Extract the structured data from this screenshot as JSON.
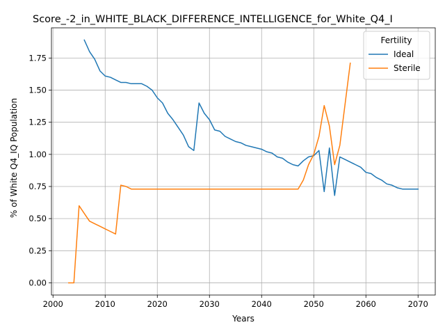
{
  "chart_data": {
    "type": "line",
    "title": "Score_-2_in_WHITE_BLACK_DIFFERENCE_INTELLIGENCE_for_White_Q4_I",
    "xlabel": "Years",
    "ylabel": "% of White Q4_IQ Population",
    "xlim": [
      1999.7,
      2073.3
    ],
    "ylim": [
      -0.095,
      1.985
    ],
    "xticks": [
      2000,
      2010,
      2020,
      2030,
      2040,
      2050,
      2060,
      2070
    ],
    "yticks": [
      0.0,
      0.25,
      0.5,
      0.75,
      1.0,
      1.25,
      1.5,
      1.75
    ],
    "ytick_labels": [
      "0.00",
      "0.25",
      "0.50",
      "0.75",
      "1.00",
      "1.25",
      "1.50",
      "1.75"
    ],
    "grid": true,
    "legend": {
      "title": "Fertility",
      "placement": "top-right"
    },
    "series": [
      {
        "name": "Ideal",
        "color": "#1f77b4",
        "x": [
          2006,
          2007,
          2008,
          2009,
          2010,
          2011,
          2012,
          2013,
          2014,
          2015,
          2016,
          2017,
          2018,
          2019,
          2020,
          2021,
          2022,
          2023,
          2024,
          2025,
          2026,
          2027,
          2028,
          2029,
          2030,
          2031,
          2032,
          2033,
          2034,
          2035,
          2036,
          2037,
          2038,
          2039,
          2040,
          2041,
          2042,
          2043,
          2044,
          2045,
          2046,
          2047,
          2048,
          2049,
          2050,
          2051,
          2052,
          2053,
          2054,
          2055,
          2056,
          2057,
          2058,
          2059,
          2060,
          2061,
          2062,
          2063,
          2064,
          2065,
          2066,
          2067,
          2068,
          2069,
          2070
        ],
        "y": [
          1.89,
          1.8,
          1.74,
          1.65,
          1.61,
          1.6,
          1.58,
          1.56,
          1.56,
          1.55,
          1.55,
          1.55,
          1.53,
          1.5,
          1.44,
          1.4,
          1.32,
          1.27,
          1.21,
          1.15,
          1.06,
          1.03,
          1.4,
          1.32,
          1.27,
          1.19,
          1.18,
          1.14,
          1.12,
          1.1,
          1.09,
          1.07,
          1.06,
          1.05,
          1.04,
          1.02,
          1.01,
          0.98,
          0.97,
          0.94,
          0.92,
          0.91,
          0.95,
          0.98,
          0.99,
          1.03,
          0.71,
          1.05,
          0.68,
          0.98,
          0.96,
          0.94,
          0.92,
          0.9,
          0.86,
          0.85,
          0.82,
          0.8,
          0.77,
          0.76,
          0.74,
          0.73,
          0.73,
          0.73,
          0.73
        ]
      },
      {
        "name": "Sterile",
        "color": "#ff7f0e",
        "x": [
          2003,
          2004,
          2005,
          2006,
          2007,
          2008,
          2009,
          2010,
          2011,
          2012,
          2013,
          2014,
          2015,
          2016,
          2017,
          2018,
          2019,
          2020,
          2021,
          2022,
          2023,
          2024,
          2025,
          2026,
          2027,
          2028,
          2029,
          2030,
          2031,
          2032,
          2033,
          2034,
          2035,
          2036,
          2037,
          2038,
          2039,
          2040,
          2041,
          2042,
          2043,
          2044,
          2045,
          2046,
          2047,
          2048,
          2049,
          2050,
          2051,
          2052,
          2053,
          2054,
          2055,
          2056,
          2057
        ],
        "y": [
          0.0,
          0.0,
          0.6,
          0.54,
          0.48,
          0.46,
          0.44,
          0.42,
          0.4,
          0.38,
          0.76,
          0.75,
          0.73,
          0.73,
          0.73,
          0.73,
          0.73,
          0.73,
          0.73,
          0.73,
          0.73,
          0.73,
          0.73,
          0.73,
          0.73,
          0.73,
          0.73,
          0.73,
          0.73,
          0.73,
          0.73,
          0.73,
          0.73,
          0.73,
          0.73,
          0.73,
          0.73,
          0.73,
          0.73,
          0.73,
          0.73,
          0.73,
          0.73,
          0.73,
          0.73,
          0.8,
          0.92,
          1.0,
          1.14,
          1.38,
          1.22,
          0.92,
          1.07,
          1.39,
          1.71
        ]
      }
    ]
  }
}
